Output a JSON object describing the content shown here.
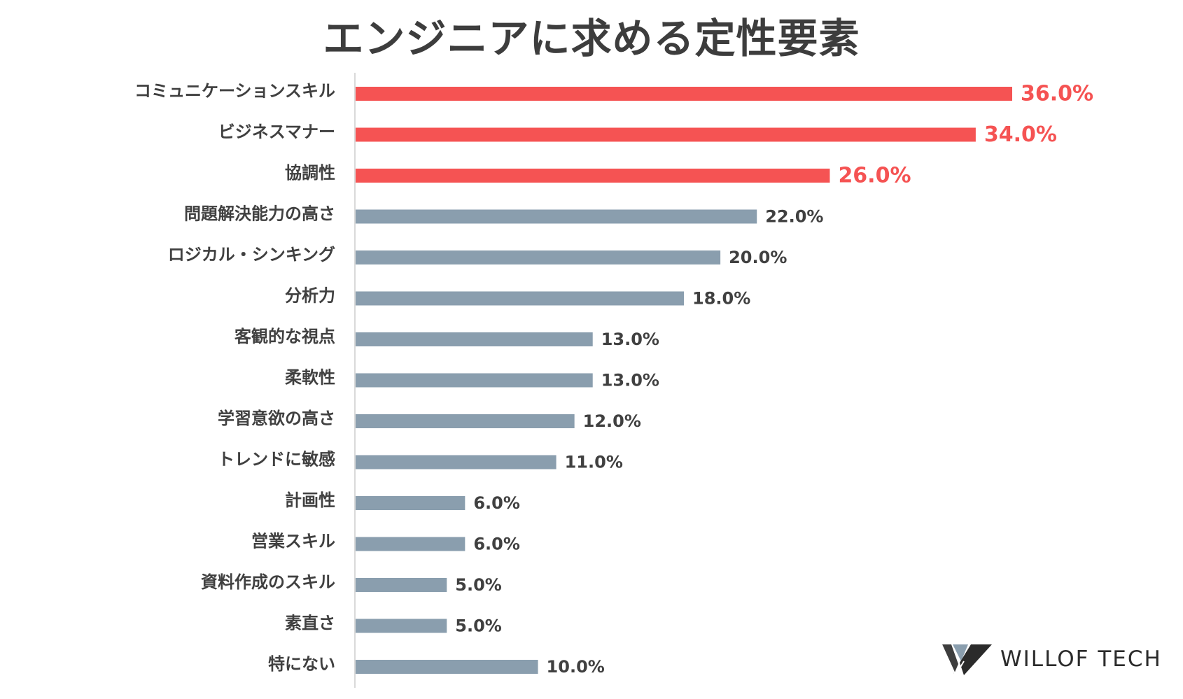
{
  "chart_data": {
    "type": "bar",
    "orientation": "horizontal",
    "title": "エンジニアに求める定性要素",
    "categories": [
      "コミュニケーションスキル",
      "ビジネスマナー",
      "協調性",
      "問題解決能力の高さ",
      "ロジカル・シンキング",
      "分析力",
      "客観的な視点",
      "柔軟性",
      "学習意欲の高さ",
      "トレンドに敏感",
      "計画性",
      "営業スキル",
      "資料作成のスキル",
      "素直さ",
      "特にない"
    ],
    "values": [
      36.0,
      34.0,
      26.0,
      22.0,
      20.0,
      18.0,
      13.0,
      13.0,
      12.0,
      11.0,
      6.0,
      6.0,
      5.0,
      5.0,
      10.0
    ],
    "value_labels": [
      "36.0%",
      "34.0%",
      "26.0%",
      "22.0%",
      "20.0%",
      "18.0%",
      "13.0%",
      "13.0%",
      "12.0%",
      "11.0%",
      "6.0%",
      "6.0%",
      "5.0%",
      "5.0%",
      "10.0%"
    ],
    "highlight_count": 3,
    "xlim": [
      0,
      36
    ],
    "xlabel": "",
    "ylabel": "",
    "grid": false,
    "legend": "none",
    "colors": {
      "highlight": "#f55353",
      "normal": "#8a9eae",
      "label": "#404040",
      "axis": "#d9d9d9"
    }
  },
  "logo": {
    "text": "WILLOF TECH",
    "icon": "willof-w-logo-icon"
  }
}
